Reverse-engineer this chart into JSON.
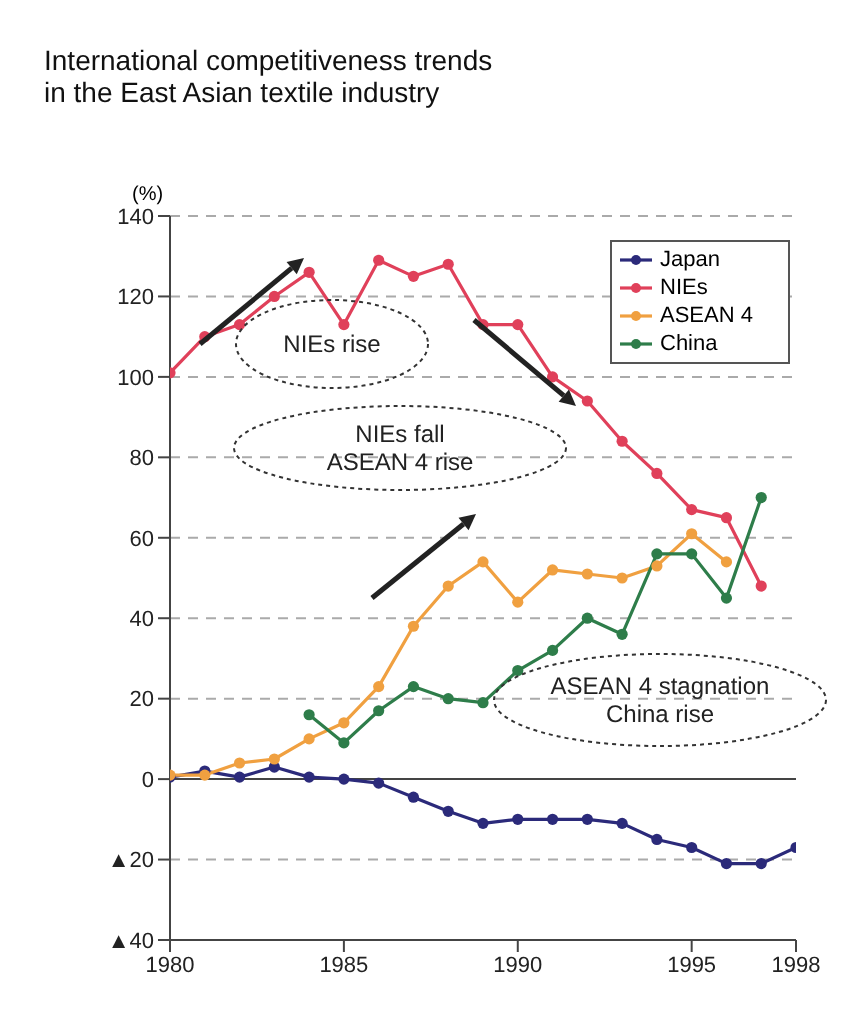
{
  "chart_data": {
    "type": "line",
    "title": "International competitiveness trends\nin the East Asian textile industry",
    "ylabel": "(%)",
    "x": [
      1980,
      1981,
      1982,
      1983,
      1984,
      1985,
      1986,
      1987,
      1988,
      1989,
      1990,
      1991,
      1992,
      1993,
      1994,
      1995,
      1996,
      1997,
      1998
    ],
    "series": [
      {
        "name": "Japan",
        "color": "#2b2a7a",
        "values": [
          0.5,
          2,
          0.5,
          3,
          0.5,
          0,
          -1,
          -4.5,
          -8,
          -11,
          -10,
          -10,
          -10,
          -11,
          -15,
          -17,
          -21,
          -21,
          -17
        ]
      },
      {
        "name": "NIEs",
        "color": "#e0405a",
        "values": [
          101,
          110,
          113,
          120,
          126,
          113,
          129,
          125,
          128,
          113,
          113,
          100,
          94,
          84,
          76,
          67,
          65,
          48,
          null
        ]
      },
      {
        "name": "ASEAN 4",
        "color": "#f0a040",
        "values": [
          1,
          1,
          4,
          5,
          10,
          14,
          23,
          38,
          48,
          54,
          44,
          52,
          51,
          50,
          53,
          61,
          54,
          null,
          null
        ]
      },
      {
        "name": "China",
        "color": "#2e7d4a",
        "values": [
          null,
          null,
          null,
          null,
          16,
          9,
          17,
          23,
          20,
          19,
          27,
          32,
          40,
          36,
          56,
          56,
          45,
          70,
          null
        ]
      }
    ],
    "xlim": [
      1980,
      1998
    ],
    "xticks": [
      1980,
      1985,
      1990,
      1995,
      1998
    ],
    "ylim": [
      -40,
      140
    ],
    "yticks": [
      {
        "value": -40,
        "label": "▲40"
      },
      {
        "value": -20,
        "label": "▲20"
      },
      0,
      20,
      40,
      60,
      80,
      100,
      120,
      140
    ],
    "ref_lines": [
      {
        "axis": "y",
        "value": 0,
        "color": "#444444"
      }
    ],
    "annotations": [
      "NIEs rise",
      "NIEs fall\nASEAN 4 rise",
      "ASEAN 4 stagnation\nChina rise"
    ],
    "grid": "y",
    "legend": "top right",
    "marker": "circle",
    "line_style": "solid"
  }
}
